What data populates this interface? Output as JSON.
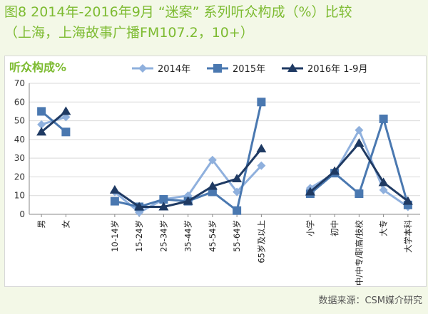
{
  "title": "图8  2014年-2016年9月 “迷案” 系列听众构成（%）比较",
  "subtitle": "（上海，上海故事广播FM107.2，10+）",
  "source": "数据来源：CSM媒介研究",
  "colors": {
    "title": "#7dbb31",
    "panel_bg": "#f3f8e7",
    "s2014": "#8fb0dd",
    "s2015": "#4a78b0",
    "s2016": "#1f3a63"
  },
  "chart_data": {
    "type": "line",
    "title": "听众构成%",
    "xlabel": "",
    "ylabel": "",
    "ylim": [
      0,
      70
    ],
    "yticks": [
      0,
      10,
      20,
      30,
      40,
      50,
      60,
      70
    ],
    "grid": "horizontal",
    "legend_position": "top",
    "categories": [
      "男",
      "女",
      "10-14岁",
      "15-24岁",
      "25-34岁",
      "35-44岁",
      "45-54岁",
      "55-64岁",
      "65岁及以上",
      "小学",
      "初中",
      "高中/中专/职高/技校",
      "大专",
      "大学本科"
    ],
    "groups": [
      {
        "from": 0,
        "to": 1
      },
      {
        "from": 2,
        "to": 8
      },
      {
        "from": 9,
        "to": 13
      }
    ],
    "series": [
      {
        "name": "2014年",
        "marker": "diamond",
        "color": "#8fb0dd",
        "values": [
          48,
          52,
          12,
          1,
          8,
          10,
          29,
          12,
          26,
          14,
          22,
          45,
          13,
          4
        ]
      },
      {
        "name": "2015年",
        "marker": "square",
        "color": "#4a78b0",
        "values": [
          55,
          44,
          7,
          4,
          8,
          7,
          12,
          2,
          60,
          11,
          22,
          11,
          51,
          5
        ]
      },
      {
        "name": "2016年 1-9月",
        "marker": "triangle",
        "color": "#1f3a63",
        "values": [
          44,
          55,
          13,
          4,
          4,
          7,
          15,
          19,
          35,
          12,
          23,
          38,
          17,
          7
        ]
      }
    ]
  }
}
